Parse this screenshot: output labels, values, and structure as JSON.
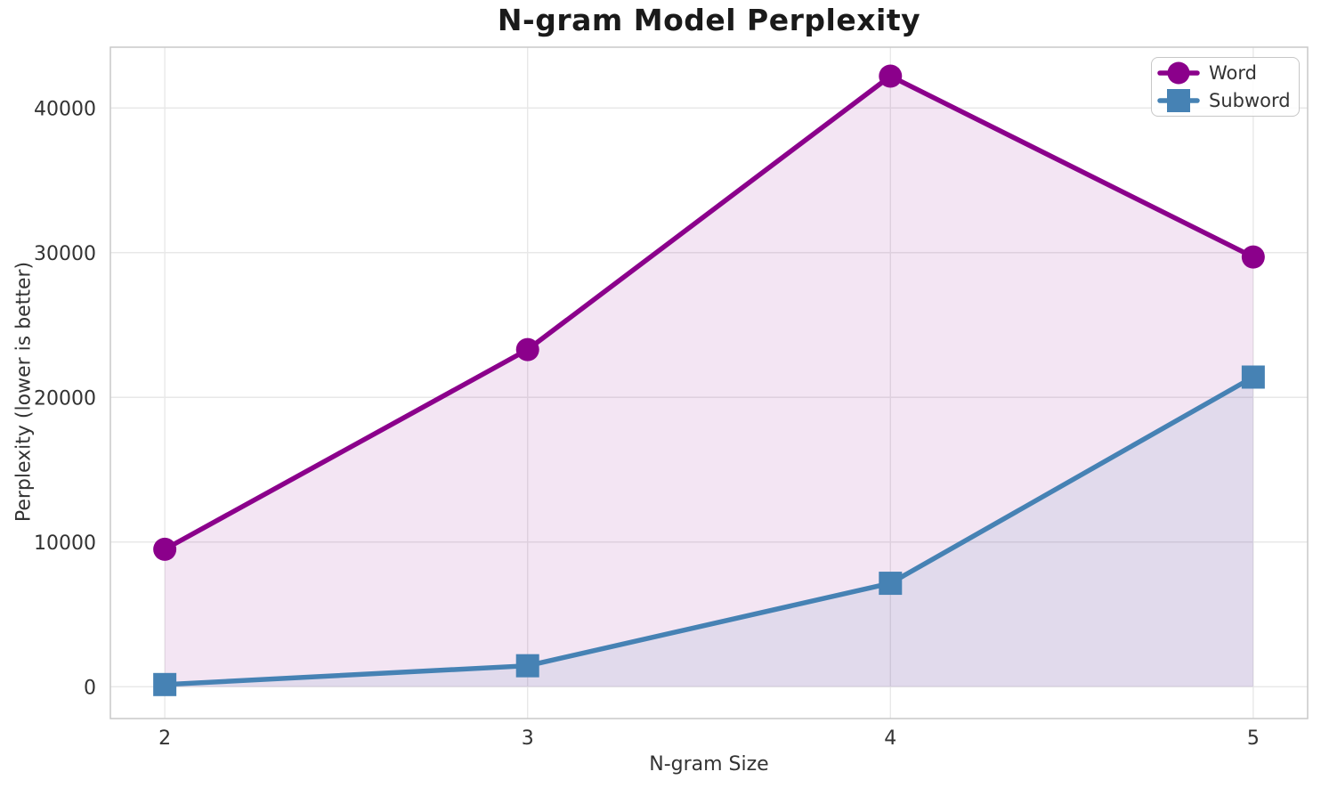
{
  "chart_data": {
    "type": "line",
    "title": "N-gram Model Perplexity",
    "xlabel": "N-gram Size",
    "ylabel": "Perplexity (lower is better)",
    "x": [
      2,
      3,
      4,
      5
    ],
    "xtick_labels": [
      "2",
      "3",
      "4",
      "5"
    ],
    "yticks": [
      0,
      10000,
      20000,
      30000,
      40000
    ],
    "ytick_labels": [
      "0",
      "10000",
      "20000",
      "30000",
      "40000"
    ],
    "xlim": [
      1.85,
      5.15
    ],
    "ylim": [
      -2200,
      44200
    ],
    "grid": true,
    "legend_position": "upper right",
    "fill_baseline": 0,
    "series": [
      {
        "name": "Word",
        "marker": "circle",
        "color": "#8b008b",
        "fill_opacity": 0.1,
        "values": [
          9500,
          23300,
          42200,
          29700
        ]
      },
      {
        "name": "Subword",
        "marker": "square",
        "color": "#4682b4",
        "fill_opacity": 0.1,
        "values": [
          150,
          1450,
          7150,
          21400
        ]
      }
    ]
  },
  "colors": {
    "background": "#ffffff",
    "grid": "#e8e8e8",
    "spine": "#c9c9c9",
    "tick_label": "#333333",
    "axis_label": "#333333",
    "title": "#1a1a1a",
    "legend_border": "#c7c7c7",
    "legend_text": "#333333"
  }
}
